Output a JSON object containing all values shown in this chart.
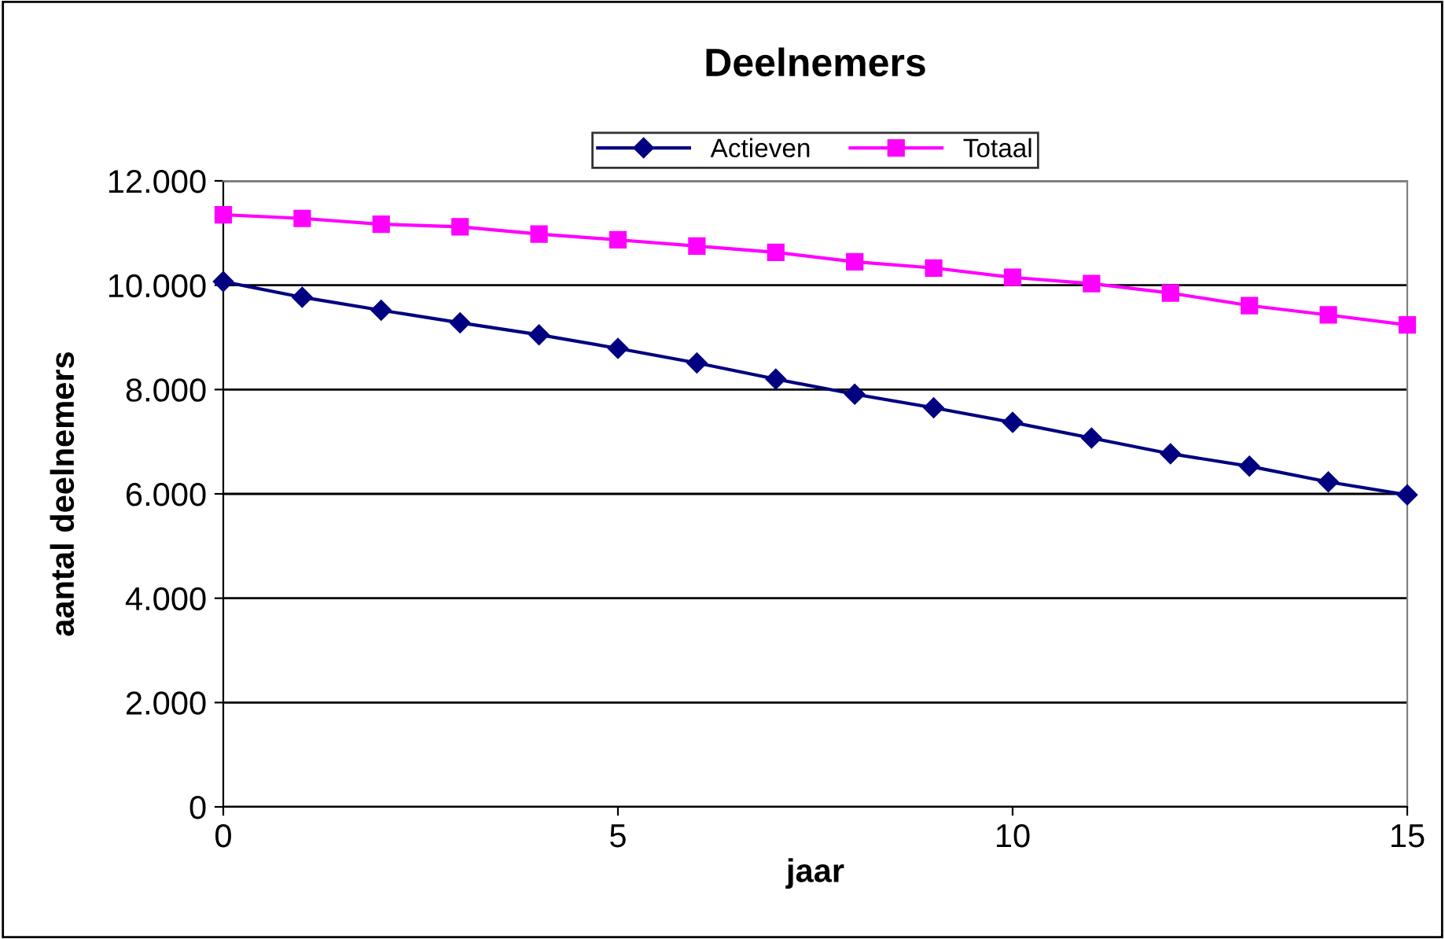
{
  "chart_data": {
    "type": "line",
    "title": "Deelnemers",
    "xlabel": "jaar",
    "ylabel": "aantal deelnemers",
    "x": [
      0,
      1,
      2,
      3,
      4,
      5,
      6,
      7,
      8,
      9,
      10,
      11,
      12,
      13,
      14,
      15
    ],
    "series": [
      {
        "name": "Actieven",
        "color": "#000080",
        "marker": "diamond",
        "values": [
          10070,
          9770,
          9520,
          9280,
          9050,
          8790,
          8510,
          8200,
          7910,
          7650,
          7370,
          7070,
          6770,
          6530,
          6230,
          5980
        ]
      },
      {
        "name": "Totaal",
        "color": "#ff00ff",
        "marker": "square",
        "values": [
          11350,
          11280,
          11170,
          11120,
          10980,
          10870,
          10750,
          10630,
          10450,
          10330,
          10150,
          10030,
          9850,
          9610,
          9430,
          9240
        ]
      }
    ],
    "xlim": [
      0,
      15
    ],
    "xticks": [
      0,
      5,
      10,
      15
    ],
    "ylim": [
      0,
      12000
    ],
    "yticks": [
      {
        "value": 0,
        "label": "0"
      },
      {
        "value": 2000,
        "label": "2.000"
      },
      {
        "value": 4000,
        "label": "4.000"
      },
      {
        "value": 6000,
        "label": "6.000"
      },
      {
        "value": 8000,
        "label": "8.000"
      },
      {
        "value": 10000,
        "label": "10.000"
      },
      {
        "value": 12000,
        "label": "12.000"
      }
    ],
    "grid": "y",
    "legend": "top",
    "line_style": "solid"
  }
}
